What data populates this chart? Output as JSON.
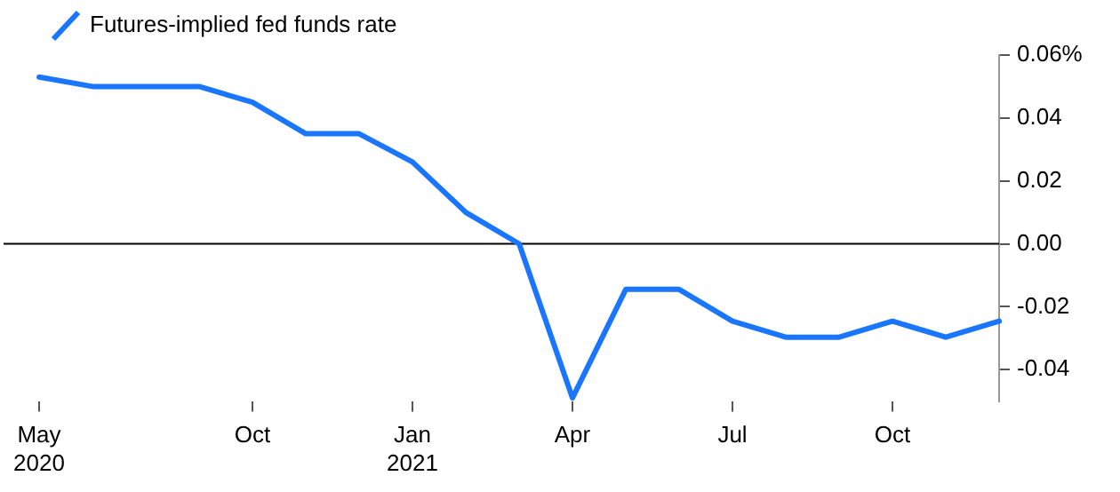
{
  "chart_data": {
    "type": "line",
    "legend": "top left",
    "categories": [
      "May 2020",
      null,
      null,
      null,
      "Oct",
      null,
      null,
      "Jan 2021",
      null,
      null,
      "Apr",
      null,
      null,
      "Jul",
      null,
      null,
      "Oct",
      null,
      null
    ],
    "series": [
      {
        "name": "Futures-implied fed funds rate",
        "color": "#1a75ff",
        "values": [
          0.053,
          0.05,
          0.05,
          0.05,
          0.045,
          0.035,
          0.035,
          0.026,
          0.01,
          0,
          -0.049,
          -0.0145,
          -0.0145,
          -0.0246,
          -0.0297,
          -0.0297,
          -0.0246,
          -0.0297,
          -0.0246
        ]
      }
    ],
    "ylim": [
      -0.05,
      0.06
    ],
    "yticks": [
      {
        "value": 0.06,
        "label": "0.06%"
      },
      0.04,
      0.02,
      {
        "value": 0,
        "label": "0.00"
      },
      -0.02,
      -0.04
    ],
    "ref_lines": [
      {
        "axis": "y",
        "value": 0,
        "color": "#000000"
      }
    ],
    "marker": "none",
    "line_style": "solid"
  }
}
